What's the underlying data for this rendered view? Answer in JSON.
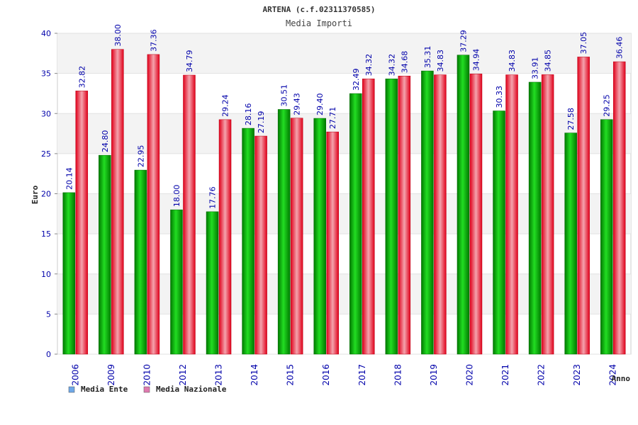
{
  "chart_data": {
    "type": "bar",
    "title": "ARTENA (c.f.02311370585)",
    "subtitle": "Media Importi",
    "xlabel": "Anno",
    "ylabel": "Euro",
    "ylim": [
      0,
      40
    ],
    "yticks": [
      "0",
      "5",
      "10",
      "15",
      "20",
      "25",
      "30",
      "35",
      "40"
    ],
    "categories": [
      "2006",
      "2009",
      "2010",
      "2012",
      "2013",
      "2014",
      "2015",
      "2016",
      "2017",
      "2018",
      "2019",
      "2020",
      "2021",
      "2022",
      "2023",
      "2024"
    ],
    "series": [
      {
        "name": "Media Ente",
        "values": [
          20.14,
          24.8,
          22.95,
          18.0,
          17.76,
          28.16,
          30.51,
          29.4,
          32.49,
          34.32,
          35.31,
          37.29,
          30.33,
          33.91,
          27.58,
          29.25
        ],
        "labels": [
          "20.14",
          "24.80",
          "22.95",
          "18.00",
          "17.76",
          "28.16",
          "30.51",
          "29.40",
          "32.49",
          "34.32",
          "35.31",
          "37.29",
          "30.33",
          "33.91",
          "27.58",
          "29.25"
        ]
      },
      {
        "name": "Media Nazionale",
        "values": [
          32.82,
          38.0,
          37.36,
          34.79,
          29.24,
          27.19,
          29.43,
          27.71,
          34.32,
          34.68,
          34.83,
          34.94,
          34.83,
          34.85,
          37.05,
          36.46
        ],
        "labels": [
          "32.82",
          "38.00",
          "37.36",
          "34.79",
          "29.24",
          "27.19",
          "29.43",
          "27.71",
          "34.32",
          "34.68",
          "34.83",
          "34.94",
          "34.83",
          "34.85",
          "37.05",
          "36.46"
        ]
      }
    ],
    "legend": [
      {
        "label": "Media Ente",
        "color": "#6fa8e8"
      },
      {
        "label": "Media Nazionale",
        "color": "#e07ab0"
      }
    ],
    "colors": {
      "ente_bar": "#00aa00",
      "nazionale_bar": "#ee1122",
      "axis_text": "#0000aa",
      "title_text": "#333333"
    }
  }
}
